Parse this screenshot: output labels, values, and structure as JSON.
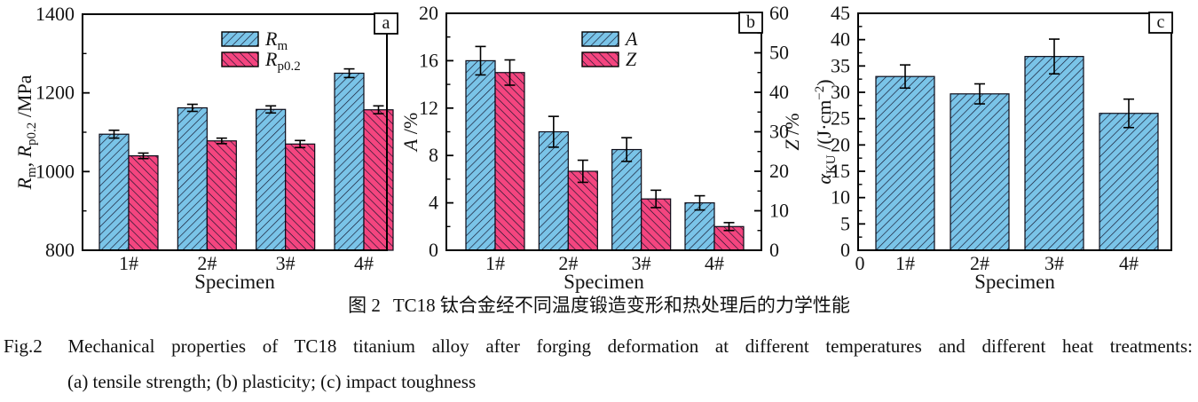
{
  "colors": {
    "blue": "#7AC4E8",
    "pink": "#F4457F",
    "hatch": "#12122A",
    "axis": "#000000",
    "text": "#141414"
  },
  "caption": {
    "zh_label": "图 2",
    "zh_text": "TC18 钛合金经不同温度锻造变形和热处理后的力学性能",
    "en_label": "Fig.2",
    "en_text": "Mechanical properties of TC18 titanium alloy after forging deformation at different temperatures and different heat treatments:",
    "items": "(a) tensile strength; (b) plasticity; (c) impact toughness"
  },
  "chart_data": [
    {
      "type": "bar",
      "panel": "a",
      "categories": [
        "1#",
        "2#",
        "3#",
        "4#"
      ],
      "xlabel": "Specimen",
      "ylabel_tokens": [
        [
          "R",
          "i"
        ],
        [
          "m",
          "sub"
        ],
        [
          ", ",
          "n"
        ],
        [
          "R",
          "i"
        ],
        [
          "p0.2",
          "sub"
        ],
        [
          " /MPa",
          "n"
        ]
      ],
      "ylim": [
        800,
        1400
      ],
      "ytick_step": 200,
      "yminor_step": 100,
      "grid": false,
      "legend_position": "top-center-inside",
      "series": [
        {
          "name": "Rm",
          "label_tokens": [
            [
              "R",
              "i"
            ],
            [
              "m",
              "sub"
            ]
          ],
          "color_key": "blue",
          "values": [
            1095,
            1162,
            1158,
            1250
          ],
          "errors": [
            10,
            9,
            9,
            11
          ]
        },
        {
          "name": "Rp0.2",
          "label_tokens": [
            [
              "R",
              "i"
            ],
            [
              "p0.2",
              "sub"
            ]
          ],
          "color_key": "pink",
          "values": [
            1040,
            1078,
            1070,
            1157
          ],
          "errors": [
            7,
            7,
            9,
            10
          ]
        }
      ]
    },
    {
      "type": "bar",
      "panel": "b",
      "categories": [
        "1#",
        "2#",
        "3#",
        "4#"
      ],
      "xlabel": "Specimen",
      "ylabel_tokens": [
        [
          "A",
          "i"
        ],
        [
          " /%",
          "n"
        ]
      ],
      "ylim": [
        0,
        20
      ],
      "ytick_step": 4,
      "yminor_step": 2,
      "y2label_tokens": [
        [
          "Z",
          "i"
        ],
        [
          " /%",
          "n"
        ]
      ],
      "y2lim": [
        0,
        60
      ],
      "y2tick_step": 10,
      "y2minor_step": 5,
      "grid": false,
      "legend_position": "top-center-inside",
      "series": [
        {
          "name": "A",
          "label_tokens": [
            [
              "A",
              "i"
            ]
          ],
          "color_key": "blue",
          "axis": "left",
          "values": [
            16,
            10,
            8.5,
            4
          ],
          "errors": [
            1.2,
            1.3,
            1.0,
            0.6
          ]
        },
        {
          "name": "Z",
          "label_tokens": [
            [
              "Z",
              "i"
            ]
          ],
          "color_key": "pink",
          "axis": "right",
          "values": [
            45,
            20,
            13,
            6
          ],
          "errors": [
            3.2,
            2.8,
            2.2,
            1.0
          ]
        }
      ]
    },
    {
      "type": "bar",
      "panel": "c",
      "categories": [
        "1#",
        "2#",
        "3#",
        "4#"
      ],
      "x_origin_label": "0",
      "xlabel": "Specimen",
      "ylabel_tokens": [
        [
          "α",
          "i"
        ],
        [
          "KU",
          "sub"
        ],
        [
          " /(J·cm",
          "n"
        ],
        [
          "−2",
          "sup"
        ],
        [
          ")",
          "n"
        ]
      ],
      "ylim": [
        0,
        45
      ],
      "ytick_step": 5,
      "yminor_step": 2.5,
      "grid": false,
      "series": [
        {
          "name": "alphaKU",
          "color_key": "blue",
          "values": [
            33,
            29.7,
            36.8,
            26
          ],
          "errors": [
            2.2,
            1.9,
            3.3,
            2.7
          ]
        }
      ]
    }
  ]
}
